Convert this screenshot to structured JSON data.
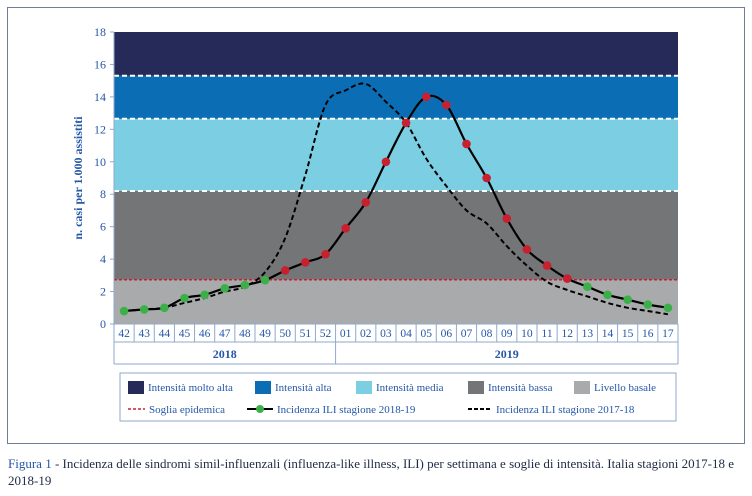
{
  "chart_data": {
    "type": "line",
    "ylabel": "n. casi per 1.000 assistiti",
    "ylim": [
      0,
      18
    ],
    "yticks": [
      0,
      2,
      4,
      6,
      8,
      10,
      12,
      14,
      16,
      18
    ],
    "weeks": [
      "42",
      "43",
      "44",
      "45",
      "46",
      "47",
      "48",
      "49",
      "50",
      "51",
      "52",
      "01",
      "02",
      "03",
      "04",
      "05",
      "06",
      "07",
      "08",
      "09",
      "10",
      "11",
      "12",
      "13",
      "14",
      "15",
      "16",
      "17"
    ],
    "years": [
      "2018",
      "2019"
    ],
    "bands": [
      {
        "name": "Livello basale",
        "from": 0,
        "to": 2.73,
        "color": "#a9aaac"
      },
      {
        "name": "Intensità bassa",
        "from": 2.73,
        "to": 8.2,
        "color": "#737576"
      },
      {
        "name": "Intensità media",
        "from": 8.2,
        "to": 12.65,
        "color": "#7ccfe3"
      },
      {
        "name": "Intensità alta",
        "from": 12.65,
        "to": 15.3,
        "color": "#0b6eb5"
      },
      {
        "name": "Intensità molto alta",
        "from": 15.3,
        "to": 18,
        "color": "#252a59"
      }
    ],
    "epidemic_threshold": {
      "name": "Soglia epidemica",
      "value": 2.73,
      "color": "#c8202e"
    },
    "series": [
      {
        "name": "Incidenza ILI stagione 2018-19",
        "style": "solid-markers",
        "values": [
          0.8,
          0.9,
          1.0,
          1.6,
          1.8,
          2.2,
          2.4,
          2.7,
          3.3,
          3.8,
          4.3,
          5.9,
          7.5,
          10.0,
          12.4,
          14.0,
          13.5,
          11.1,
          9.0,
          6.5,
          4.6,
          3.6,
          2.8,
          2.3,
          1.8,
          1.5,
          1.2,
          1.0
        ]
      },
      {
        "name": "Incidenza ILI stagione 2017-18",
        "style": "dashed",
        "values": [
          0.8,
          0.9,
          1.0,
          1.3,
          1.6,
          2.0,
          2.3,
          3.2,
          5.3,
          9.2,
          13.5,
          14.4,
          14.8,
          13.7,
          12.4,
          10.2,
          8.5,
          7.0,
          6.2,
          4.8,
          3.6,
          2.6,
          2.1,
          1.7,
          1.3,
          1.0,
          0.8,
          0.6
        ]
      }
    ]
  },
  "legend": {
    "items_row1": [
      "Intensità molto alta",
      "Intensità alta",
      "Intensità media",
      "Intensità bassa",
      "Livello basale"
    ],
    "items_row2": [
      "Soglia epidemica",
      "Incidenza ILI stagione 2018-19",
      "Incidenza ILI stagione 2017-18"
    ]
  },
  "caption": {
    "label": "Figura 1",
    "text": " - Incidenza delle sindromi simil-influenzali (influenza-like illness, ILI) per settimana e soglie di intensità. Italia stagioni 2017-18 e 2018-19"
  },
  "colors": {
    "axis_text": "#2457a6",
    "grid_line": "#8fa9cc",
    "marker_2018_19_above_threshold": "#c8202e",
    "marker_2018_19_below_threshold": "#3bb049"
  }
}
